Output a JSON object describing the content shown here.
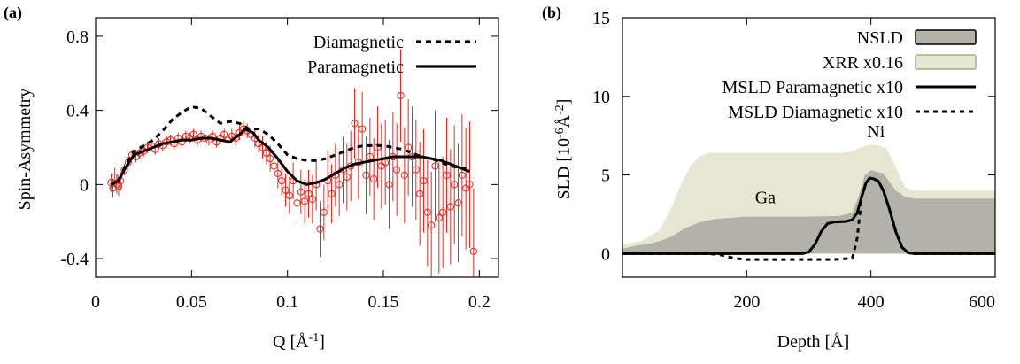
{
  "chart_data": [
    {
      "panel_label": "(a)",
      "type": "line",
      "xlabel_main": "Q [Å",
      "xlabel_sup": "-1",
      "xlabel_close": "]",
      "ylabel": "Spin-Asymmetry",
      "xlim": [
        0,
        0.21
      ],
      "ylim": [
        -0.5,
        0.9
      ],
      "xticks": [
        0,
        0.05,
        0.1,
        0.15,
        0.2
      ],
      "xtick_labels": [
        "0",
        "0.05",
        "0.1",
        "0.15",
        "0.2"
      ],
      "yticks": [
        -0.4,
        0,
        0.4,
        0.8
      ],
      "ytick_labels": [
        "-0.4",
        "0",
        "0.4",
        "0.8"
      ],
      "legend_position": "top-right",
      "series": [
        {
          "name": "Diamagnetic",
          "style": "dashed",
          "x": [
            0.008,
            0.012,
            0.015,
            0.02,
            0.025,
            0.03,
            0.035,
            0.04,
            0.045,
            0.05,
            0.055,
            0.06,
            0.065,
            0.07,
            0.075,
            0.08,
            0.085,
            0.09,
            0.095,
            0.1,
            0.105,
            0.11,
            0.115,
            0.12,
            0.125,
            0.13,
            0.135,
            0.14,
            0.145,
            0.15,
            0.155,
            0.16,
            0.165,
            0.17,
            0.175,
            0.18,
            0.185,
            0.19,
            0.195
          ],
          "y": [
            0.0,
            0.02,
            0.09,
            0.18,
            0.21,
            0.24,
            0.29,
            0.35,
            0.39,
            0.42,
            0.41,
            0.37,
            0.33,
            0.34,
            0.33,
            0.3,
            0.3,
            0.27,
            0.22,
            0.16,
            0.14,
            0.13,
            0.13,
            0.14,
            0.16,
            0.18,
            0.2,
            0.21,
            0.21,
            0.21,
            0.2,
            0.19,
            0.17,
            0.15,
            0.14,
            0.12,
            0.1,
            0.09,
            0.08
          ]
        },
        {
          "name": "Paramagnetic",
          "style": "solid",
          "x": [
            0.008,
            0.012,
            0.015,
            0.02,
            0.025,
            0.03,
            0.035,
            0.04,
            0.045,
            0.05,
            0.055,
            0.06,
            0.065,
            0.07,
            0.075,
            0.078,
            0.082,
            0.085,
            0.09,
            0.095,
            0.1,
            0.105,
            0.11,
            0.115,
            0.12,
            0.125,
            0.13,
            0.135,
            0.14,
            0.145,
            0.15,
            0.155,
            0.16,
            0.165,
            0.17,
            0.175,
            0.18,
            0.185,
            0.19,
            0.195
          ],
          "y": [
            0.0,
            0.02,
            0.08,
            0.16,
            0.18,
            0.2,
            0.22,
            0.23,
            0.24,
            0.24,
            0.25,
            0.25,
            0.24,
            0.23,
            0.27,
            0.3,
            0.28,
            0.24,
            0.2,
            0.14,
            0.07,
            0.02,
            0.0,
            0.01,
            0.03,
            0.06,
            0.09,
            0.11,
            0.12,
            0.13,
            0.14,
            0.15,
            0.15,
            0.15,
            0.15,
            0.14,
            0.13,
            0.11,
            0.09,
            0.07
          ]
        }
      ],
      "data_points": {
        "marker": "open-circle",
        "color": "#e8281e",
        "x": [
          0.008,
          0.009,
          0.01,
          0.011,
          0.012,
          0.013,
          0.015,
          0.017,
          0.019,
          0.021,
          0.023,
          0.025,
          0.027,
          0.029,
          0.031,
          0.033,
          0.035,
          0.037,
          0.039,
          0.041,
          0.043,
          0.045,
          0.047,
          0.049,
          0.051,
          0.053,
          0.055,
          0.057,
          0.059,
          0.061,
          0.063,
          0.065,
          0.067,
          0.069,
          0.071,
          0.073,
          0.075,
          0.077,
          0.079,
          0.081,
          0.083,
          0.085,
          0.087,
          0.089,
          0.091,
          0.093,
          0.095,
          0.097,
          0.099,
          0.101,
          0.103,
          0.105,
          0.107,
          0.109,
          0.111,
          0.113,
          0.115,
          0.117,
          0.119,
          0.121,
          0.123,
          0.125,
          0.127,
          0.129,
          0.131,
          0.133,
          0.135,
          0.137,
          0.139,
          0.141,
          0.143,
          0.145,
          0.147,
          0.149,
          0.151,
          0.153,
          0.155,
          0.157,
          0.159,
          0.161,
          0.163,
          0.165,
          0.167,
          0.169,
          0.171,
          0.173,
          0.175,
          0.177,
          0.179,
          0.181,
          0.183,
          0.185,
          0.187,
          0.189,
          0.191,
          0.193,
          0.195,
          0.197
        ],
        "y": [
          0.01,
          -0.02,
          0.04,
          0.0,
          -0.01,
          0.02,
          0.08,
          0.12,
          0.16,
          0.15,
          0.17,
          0.18,
          0.2,
          0.21,
          0.19,
          0.22,
          0.21,
          0.23,
          0.24,
          0.22,
          0.25,
          0.23,
          0.26,
          0.25,
          0.27,
          0.24,
          0.26,
          0.25,
          0.24,
          0.26,
          0.23,
          0.25,
          0.27,
          0.24,
          0.26,
          0.25,
          0.28,
          0.3,
          0.29,
          0.27,
          0.25,
          0.22,
          0.2,
          0.17,
          0.14,
          0.1,
          0.06,
          0.02,
          -0.03,
          -0.06,
          0.02,
          -0.1,
          -0.04,
          -0.09,
          -0.05,
          -0.08,
          0.0,
          -0.24,
          -0.15,
          0.02,
          -0.05,
          0.05,
          0.0,
          0.08,
          0.04,
          0.1,
          0.33,
          0.12,
          0.3,
          0.05,
          0.15,
          0.03,
          0.2,
          0.1,
          0.12,
          0.0,
          0.15,
          0.08,
          0.48,
          0.05,
          0.2,
          0.15,
          0.08,
          -0.05,
          0.02,
          -0.15,
          -0.22,
          0.1,
          -0.18,
          -0.15,
          0.05,
          -0.12,
          0.0,
          -0.1,
          0.05,
          -0.02,
          0.0,
          -0.36
        ],
        "err": [
          0.05,
          0.05,
          0.05,
          0.05,
          0.05,
          0.05,
          0.03,
          0.03,
          0.03,
          0.03,
          0.03,
          0.03,
          0.03,
          0.03,
          0.03,
          0.03,
          0.03,
          0.03,
          0.03,
          0.03,
          0.03,
          0.03,
          0.03,
          0.03,
          0.03,
          0.03,
          0.03,
          0.03,
          0.03,
          0.03,
          0.03,
          0.03,
          0.03,
          0.04,
          0.04,
          0.04,
          0.04,
          0.04,
          0.04,
          0.05,
          0.05,
          0.05,
          0.06,
          0.06,
          0.07,
          0.07,
          0.08,
          0.08,
          0.09,
          0.1,
          0.1,
          0.11,
          0.12,
          0.12,
          0.13,
          0.13,
          0.14,
          0.15,
          0.15,
          0.16,
          0.16,
          0.17,
          0.17,
          0.18,
          0.18,
          0.19,
          0.19,
          0.2,
          0.2,
          0.21,
          0.21,
          0.22,
          0.22,
          0.23,
          0.23,
          0.24,
          0.24,
          0.25,
          0.25,
          0.26,
          0.26,
          0.27,
          0.27,
          0.28,
          0.28,
          0.29,
          0.29,
          0.3,
          0.3,
          0.3,
          0.31,
          0.31,
          0.32,
          0.32,
          0.33,
          0.33,
          0.34,
          0.34
        ]
      }
    },
    {
      "panel_label": "(b)",
      "type": "area",
      "xlabel": "Depth [Å]",
      "ylabel_main": "SLD [10",
      "ylabel_sup1": "-6",
      "ylabel_mid": "Å",
      "ylabel_sup2": "-2",
      "ylabel_close": "]",
      "xlim": [
        0,
        600
      ],
      "ylim": [
        -1.5,
        15
      ],
      "xticks": [
        200,
        400,
        600
      ],
      "xtick_labels": [
        "200",
        "400",
        "600"
      ],
      "yticks": [
        0,
        5,
        10,
        15
      ],
      "ytick_labels": [
        "0",
        "5",
        "10",
        "15"
      ],
      "legend_position": "top-right",
      "annotations": [
        {
          "text": "Ga",
          "x": 230,
          "y": 3.2
        },
        {
          "text": "Ni",
          "x": 408,
          "y": 7.4
        }
      ],
      "series": [
        {
          "name": "XRR x0.16",
          "style": "filled",
          "color": "#e6e6d2",
          "edge_color": "#a9aa86",
          "x": [
            0,
            30,
            60,
            80,
            95,
            110,
            125,
            140,
            200,
            300,
            350,
            370,
            380,
            395,
            410,
            425,
            440,
            455,
            470,
            500,
            550,
            600
          ],
          "y": [
            0.6,
            0.8,
            1.5,
            3.0,
            4.5,
            5.6,
            6.2,
            6.4,
            6.4,
            6.4,
            6.4,
            6.5,
            6.7,
            6.9,
            6.9,
            6.7,
            5.5,
            4.2,
            4.0,
            4.0,
            4.0,
            4.0
          ]
        },
        {
          "name": "NSLD",
          "style": "filled",
          "color": "#b3b2a8",
          "edge_color": "#000000",
          "x": [
            0,
            20,
            40,
            60,
            80,
            100,
            125,
            150,
            200,
            300,
            350,
            370,
            380,
            390,
            400,
            420,
            440,
            455,
            470,
            500,
            550,
            600
          ],
          "y": [
            0.3,
            0.5,
            0.6,
            0.8,
            1.1,
            1.6,
            2.0,
            2.2,
            2.35,
            2.35,
            2.4,
            2.6,
            3.6,
            5.0,
            5.3,
            5.1,
            4.0,
            3.6,
            3.5,
            3.5,
            3.5,
            3.5
          ]
        },
        {
          "name": "MSLD Paramagnetic x10",
          "style": "solid",
          "x": [
            0,
            100,
            200,
            290,
            300,
            310,
            320,
            330,
            340,
            360,
            370,
            378,
            385,
            392,
            398,
            405,
            412,
            420,
            430,
            440,
            450,
            460,
            470,
            500,
            600
          ],
          "y": [
            0,
            0,
            0,
            0,
            0.1,
            0.6,
            1.4,
            1.9,
            2.0,
            2.05,
            2.15,
            2.6,
            3.6,
            4.5,
            4.8,
            4.75,
            4.6,
            4.0,
            2.8,
            1.4,
            0.4,
            0.05,
            0,
            0,
            0
          ]
        },
        {
          "name": "MSLD Diamagnetic x10",
          "style": "dashed",
          "x": [
            0,
            140,
            160,
            180,
            200,
            250,
            300,
            340,
            370,
            378,
            385,
            392,
            398,
            405,
            412,
            420,
            430,
            440,
            450,
            460,
            470,
            500,
            600
          ],
          "y": [
            0,
            0,
            -0.1,
            -0.3,
            -0.38,
            -0.38,
            -0.38,
            -0.38,
            -0.3,
            1.0,
            3.6,
            4.5,
            4.8,
            4.75,
            4.6,
            4.0,
            2.8,
            1.4,
            0.4,
            0.05,
            0,
            0,
            0
          ]
        }
      ]
    }
  ]
}
